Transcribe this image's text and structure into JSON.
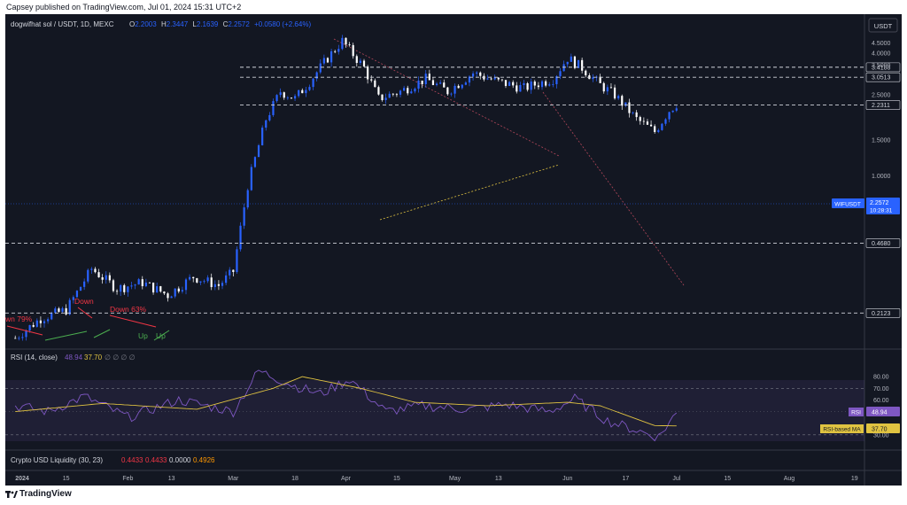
{
  "publish_line": "Capsey published on TradingView.com, Jul 01, 2024 15:31 UTC+2",
  "legend": {
    "symbol": "dogwifhat sol / USDT, 1D, MEXC",
    "o_label": "O",
    "o_value": "2.2003",
    "h_label": "H",
    "h_value": "2.3447",
    "l_label": "L",
    "l_value": "2.1639",
    "c_label": "C",
    "c_value": "2.2572",
    "change": "+0.0580 (+2.64%)"
  },
  "currency_label": "USDT",
  "price_ticks": [
    "4.5000",
    "4.0000",
    "3.5000",
    "2.5000",
    "1.5000",
    "1.0000"
  ],
  "levels": [
    {
      "value": 3.4188,
      "label": "3.4188"
    },
    {
      "value": 3.0513,
      "label": "3.0513"
    },
    {
      "value": 2.2311,
      "label": "2.2311"
    },
    {
      "value": 0.468,
      "label": "0.4680"
    },
    {
      "value": 0.2123,
      "label": "0.2123"
    }
  ],
  "current_price": {
    "tag": "WIFUSDT",
    "value": "2.2572",
    "countdown": "10:28:31"
  },
  "annotations": [
    "wn 79%",
    "Down",
    "Down 63%",
    "Up",
    "Up"
  ],
  "rsi": {
    "title": "RSI (14, close)",
    "value": "48.94",
    "ma_value": "37.70",
    "placeholders": "∅ ∅ ∅ ∅",
    "ticks": [
      "80.00",
      "70.00",
      "60.00",
      "30.00"
    ],
    "tag_label": "RSI",
    "ma_tag_label": "RSI-based MA"
  },
  "liquidity": {
    "title": "Crypto USD Liquidity (30, 23)",
    "values": [
      "0.4433",
      "0.4433",
      "0.0000",
      "0.4926"
    ]
  },
  "time_axis": [
    "2024",
    "15",
    "Feb",
    "13",
    "Mar",
    "18",
    "Apr",
    "15",
    "May",
    "13",
    "Jun",
    "17",
    "Jul",
    "15",
    "Aug",
    "19"
  ],
  "brand": "TradingView",
  "colors": {
    "up": "#2962ff",
    "down": "#ffffff",
    "rsi_line": "#7e57c2",
    "rsi_ma": "#e0c341",
    "bg": "#131722"
  },
  "chart_data": {
    "type": "candlestick",
    "title": "dogwifhat sol / USDT, 1D, MEXC",
    "ylabel": "USDT",
    "x_range": [
      "2023-12-30",
      "2024-08-21"
    ],
    "y_scale": "log",
    "ylim": [
      0.15,
      5.2
    ],
    "horizontal_levels": [
      3.4188,
      3.0513,
      2.2311,
      0.468,
      0.2123
    ],
    "price_path": [
      [
        "2024-01-01",
        0.16
      ],
      [
        "2024-01-08",
        0.2
      ],
      [
        "2024-01-15",
        0.22
      ],
      [
        "2024-01-22",
        0.35
      ],
      [
        "2024-01-29",
        0.28
      ],
      [
        "2024-02-05",
        0.3
      ],
      [
        "2024-02-12",
        0.26
      ],
      [
        "2024-02-19",
        0.32
      ],
      [
        "2024-02-26",
        0.29
      ],
      [
        "2024-03-01",
        0.34
      ],
      [
        "2024-03-05",
        0.9
      ],
      [
        "2024-03-10",
        1.9
      ],
      [
        "2024-03-14",
        2.6
      ],
      [
        "2024-03-18",
        2.4
      ],
      [
        "2024-03-22",
        2.9
      ],
      [
        "2024-03-27",
        3.8
      ],
      [
        "2024-03-31",
        4.6
      ],
      [
        "2024-04-06",
        3.4
      ],
      [
        "2024-04-10",
        2.4
      ],
      [
        "2024-04-16",
        2.6
      ],
      [
        "2024-04-23",
        3.0
      ],
      [
        "2024-04-29",
        2.6
      ],
      [
        "2024-05-06",
        3.2
      ],
      [
        "2024-05-13",
        2.9
      ],
      [
        "2024-05-20",
        2.7
      ],
      [
        "2024-05-28",
        3.0
      ],
      [
        "2024-06-01",
        3.8
      ],
      [
        "2024-06-05",
        3.4
      ],
      [
        "2024-06-10",
        2.8
      ],
      [
        "2024-06-14",
        2.5
      ],
      [
        "2024-06-20",
        1.9
      ],
      [
        "2024-06-25",
        1.65
      ],
      [
        "2024-06-29",
        2.1
      ],
      [
        "2024-07-01",
        2.2572
      ]
    ],
    "rsi": {
      "ylim": [
        20,
        90
      ],
      "values": [
        [
          "2024-01-01",
          55
        ],
        [
          "2024-01-10",
          50
        ],
        [
          "2024-01-20",
          63
        ],
        [
          "2024-02-01",
          45
        ],
        [
          "2024-02-15",
          60
        ],
        [
          "2024-03-01",
          50
        ],
        [
          "2024-03-08",
          85
        ],
        [
          "2024-03-18",
          72
        ],
        [
          "2024-03-25",
          65
        ],
        [
          "2024-04-02",
          78
        ],
        [
          "2024-04-12",
          50
        ],
        [
          "2024-04-22",
          55
        ],
        [
          "2024-05-05",
          52
        ],
        [
          "2024-05-15",
          56
        ],
        [
          "2024-05-27",
          50
        ],
        [
          "2024-06-03",
          61
        ],
        [
          "2024-06-12",
          42
        ],
        [
          "2024-06-22",
          32
        ],
        [
          "2024-06-26",
          28
        ],
        [
          "2024-07-01",
          48.94
        ]
      ],
      "ma_values": [
        [
          "2024-01-01",
          50
        ],
        [
          "2024-01-25",
          57
        ],
        [
          "2024-02-20",
          52
        ],
        [
          "2024-03-12",
          70
        ],
        [
          "2024-03-20",
          80
        ],
        [
          "2024-04-05",
          70
        ],
        [
          "2024-04-20",
          58
        ],
        [
          "2024-05-10",
          55
        ],
        [
          "2024-06-01",
          58
        ],
        [
          "2024-06-10",
          55
        ],
        [
          "2024-06-25",
          38
        ],
        [
          "2024-07-01",
          37.7
        ]
      ]
    }
  }
}
